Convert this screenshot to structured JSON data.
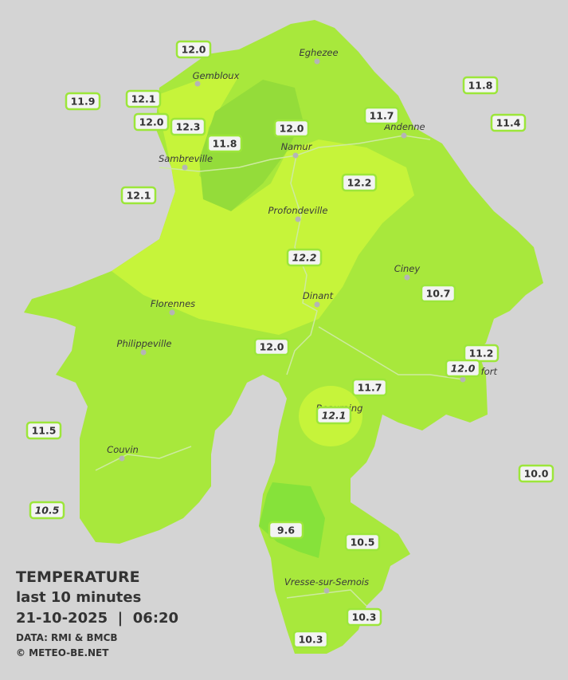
{
  "legend": {
    "title": "TEMPERATURE",
    "period": "last 10 minutes",
    "datetime": "21-10-2025  |  06:20",
    "source": "DATA: RMI & BMCB",
    "credit": "© METEO-BE.NET"
  },
  "cities": [
    "Eghezee",
    "Gembloux",
    "Andenne",
    "Namur",
    "Sambreville",
    "Profondeville",
    "Ciney",
    "Dinant",
    "Florennes",
    "Philippeville",
    "Rochefort",
    "Beauraing",
    "Couvin",
    "Vresse-sur-Semois"
  ],
  "stations": [
    {
      "label": "12.0"
    },
    {
      "label": "12.1"
    },
    {
      "label": "11.9"
    },
    {
      "label": "12.0"
    },
    {
      "label": "12.3"
    },
    {
      "label": "11.8"
    },
    {
      "label": "12.0"
    },
    {
      "label": "11.7"
    },
    {
      "label": "11.8"
    },
    {
      "label": "11.4"
    },
    {
      "label": "12.1"
    },
    {
      "label": "12.2"
    },
    {
      "label": "12.2",
      "style": "italic"
    },
    {
      "label": "10.7"
    },
    {
      "label": "12.0"
    },
    {
      "label": "11.2"
    },
    {
      "label": "12.0",
      "style": "italic"
    },
    {
      "label": "11.7"
    },
    {
      "label": "12.1",
      "style": "italic"
    },
    {
      "label": "11.5"
    },
    {
      "label": "10.0"
    },
    {
      "label": "10.5",
      "style": "italic"
    },
    {
      "label": "9.6"
    },
    {
      "label": "10.5"
    },
    {
      "label": "10.3"
    },
    {
      "label": "10.3"
    }
  ]
}
